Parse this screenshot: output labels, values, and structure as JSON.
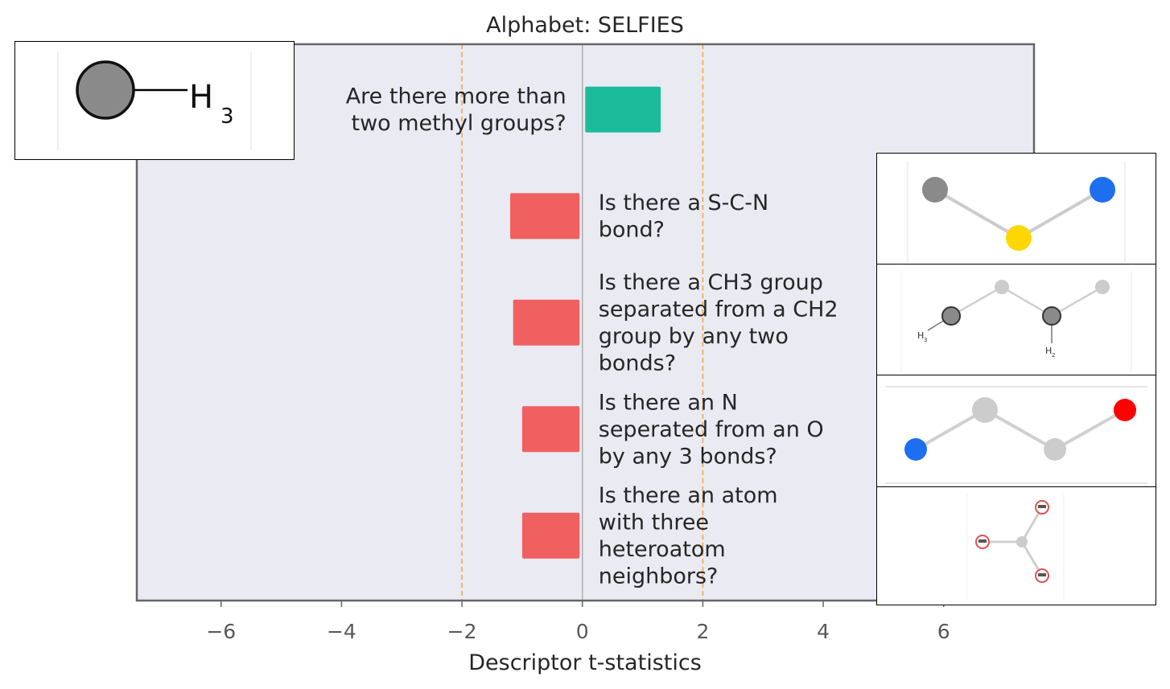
{
  "chart_data": {
    "type": "bar",
    "orientation": "horizontal",
    "title": "Alphabet: SELFIES",
    "xlabel": "Descriptor t-statistics",
    "ylabel": "",
    "xlim": [
      -7.4,
      7.5
    ],
    "xticks": [
      -6,
      -4,
      -2,
      0,
      2,
      4,
      6
    ],
    "xtick_labels": [
      "−6",
      "−4",
      "−2",
      "0",
      "2",
      "4",
      "6"
    ],
    "threshold_lines": [
      -2,
      2
    ],
    "grid": false,
    "categories": [
      "Are there more than\ntwo methyl groups?",
      "Is there a S-C-N\nbond?",
      "Is there a CH3 group\nseparated from a CH2\ngroup by any two\nbonds?",
      "Is there an N\nseperated from an O\nby any 3 bonds?",
      "Is there an atom\nwith three\nheteroatom\nneighbors?"
    ],
    "values": [
      1.3,
      -1.2,
      -1.15,
      -1.0,
      -1.0
    ]
  },
  "insets": {
    "methyl": {
      "label": "H",
      "subscript": "3"
    },
    "ch3ch2": {
      "label_a": "H",
      "sub_a": "3",
      "label_b": "H",
      "sub_b": "2"
    }
  },
  "colors": {
    "positive": "#1abc9c",
    "negative": "#f06060",
    "axes_background": "#e9eaf2",
    "threshold": "#f5a742",
    "zero_line": "#a0a0a0",
    "frame": "#666666",
    "text": "#262626",
    "tick_text": "#595959"
  }
}
